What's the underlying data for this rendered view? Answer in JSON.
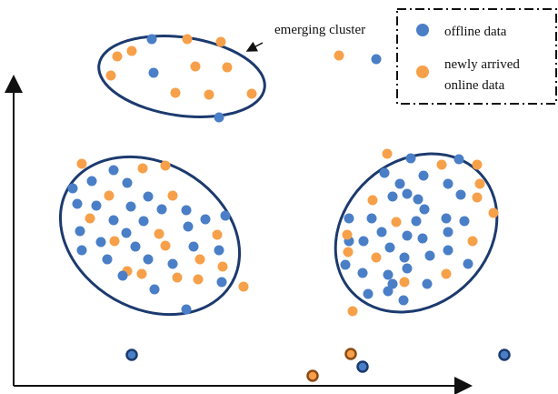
{
  "annotation": {
    "text": "emerging cluster"
  },
  "legend": {
    "items": [
      {
        "lines": [
          "offline data"
        ],
        "color": "#4a7fc7",
        "icon": "blue-dot-icon"
      },
      {
        "lines": [
          "newly arrived",
          "online data"
        ],
        "color": "#f7a04a",
        "icon": "orange-dot-icon"
      }
    ],
    "border_style": "dash-dot"
  },
  "colors": {
    "offline": "#4a7fc7",
    "online": "#f7a04a",
    "ellipse_stroke": "#1c3a6e",
    "axis": "#111111",
    "outlier_offline_ring": "#1c3a6e",
    "outlier_online_ring": "#8a4a12"
  }
}
